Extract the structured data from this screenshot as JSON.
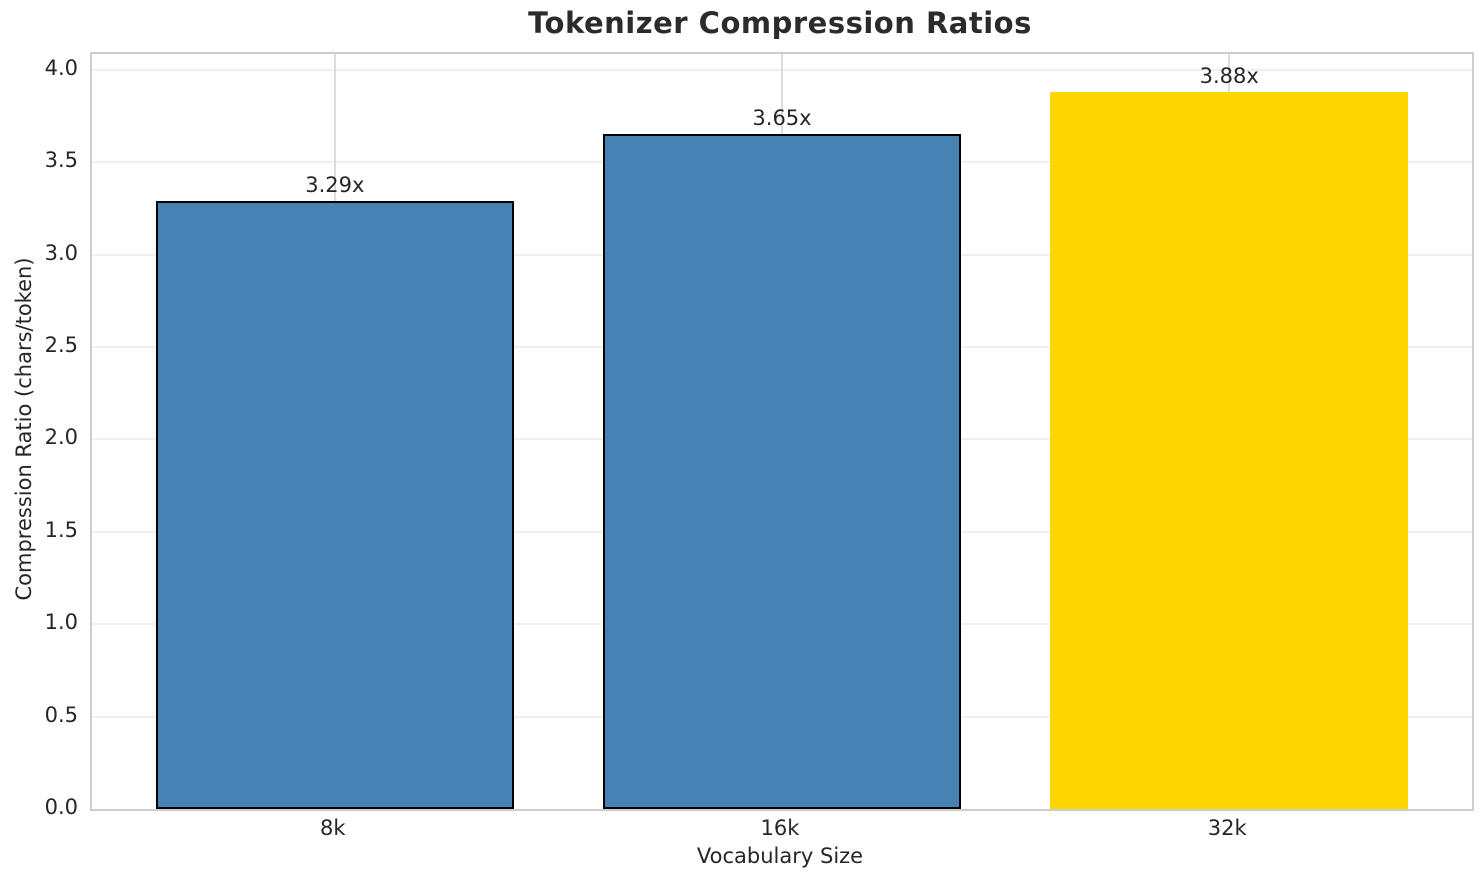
{
  "title": "Tokenizer Compression Ratios",
  "chart_data": {
    "type": "bar",
    "title": "Tokenizer Compression Ratios",
    "xlabel": "Vocabulary Size",
    "ylabel": "Compression Ratio (chars/token)",
    "categories": [
      "8k",
      "16k",
      "32k"
    ],
    "values": [
      3.29,
      3.65,
      3.88
    ],
    "bar_labels": [
      "3.29x",
      "3.65x",
      "3.88x"
    ],
    "bar_colors": [
      "#4682b4",
      "#4682b4",
      "#ffd700"
    ],
    "bar_edge_colors": [
      "#000000",
      "#000000",
      "none"
    ],
    "ylim": [
      0,
      4.085
    ],
    "yticks": [
      0.0,
      0.5,
      1.0,
      1.5,
      2.0,
      2.5,
      3.0,
      3.5,
      4.0
    ],
    "ytick_labels": [
      "0.0",
      "0.5",
      "1.0",
      "1.5",
      "2.0",
      "2.5",
      "3.0",
      "3.5",
      "4.0"
    ],
    "bar_width_fraction": 0.8,
    "xlim": [
      -0.543,
      2.543
    ],
    "grid": "horizontal-and-vertical",
    "legend_position": "none"
  },
  "colors": {
    "bar_blue": "#4682b4",
    "bar_gold": "#ffd700",
    "bar_edge": "#000000",
    "grid_horizontal": "#f0f0f0",
    "grid_vertical": "#dcdcdc",
    "spine": "#cdcdcd",
    "text": "#262626",
    "background": "#ffffff"
  }
}
